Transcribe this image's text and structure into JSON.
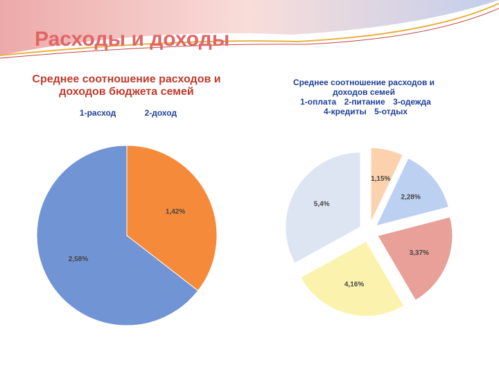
{
  "title": "Расходы и доходы",
  "chart_data": [
    {
      "type": "pie",
      "title": "Среднее соотношение расходов и доходов бюджета семей",
      "categories": [
        "1-расход",
        "2-доход"
      ],
      "values": [
        2.58,
        1.42
      ],
      "value_labels": [
        "2,58%",
        "1,42%"
      ],
      "colors": [
        "#7094d4",
        "#f58a3a"
      ]
    },
    {
      "type": "pie",
      "title": "Среднее соотношение расходов и доходов семей",
      "categories": [
        "1-оплата",
        "2-питание",
        "3-одежда",
        "4-кредиты",
        "5-отдых"
      ],
      "values": [
        1.15,
        2.28,
        3.37,
        4.16,
        5.4
      ],
      "value_labels": [
        "1,15%",
        "2,28%",
        "3,37%",
        "4,16%",
        "5,4%"
      ],
      "colors": [
        "#fbd2ad",
        "#bcd0f2",
        "#e8a098",
        "#fbf3ad",
        "#dde5f2"
      ],
      "exploded": true
    }
  ]
}
